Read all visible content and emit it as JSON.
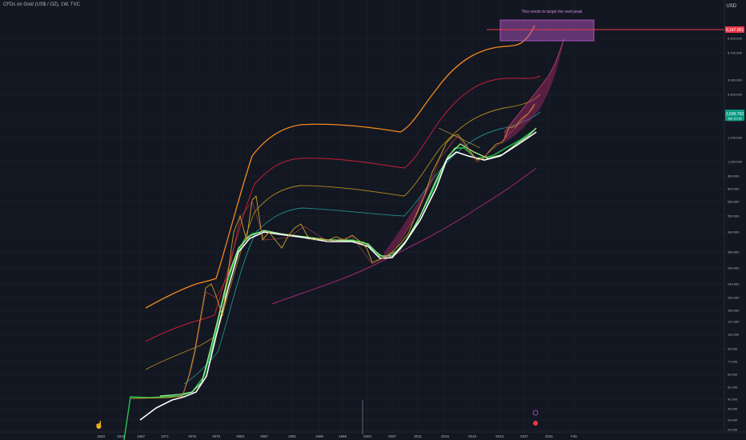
{
  "title": "CFDs on Gold (US$ / OZ), 1W, TVC",
  "currency": "USD",
  "annotation": "This needs to target the next peak.",
  "target_price_label": "9,147.001",
  "current_price_label": "2,699.750",
  "current_price_sub": "39d 11h 55",
  "chart_data": {
    "type": "line",
    "scale": "log",
    "x_ticks": [
      "1833",
      "1929",
      "1957",
      "1971",
      "1975",
      "1979",
      "1983",
      "1987",
      "1991",
      "1995",
      "1999",
      "2003",
      "2007",
      "2011",
      "2015",
      "2019",
      "2023",
      "2027",
      "2031",
      "Feb"
    ],
    "y_ticks": [
      "6,900.000",
      "5,700.000",
      "3,900.000",
      "3,100.000",
      "2,300.000",
      "1,700.000",
      "1,160.000",
      "960.000",
      "800.000",
      "650.000",
      "530.000",
      "430.000",
      "350.000",
      "290.000",
      "240.000",
      "200.000",
      "165.000",
      "137.000",
      "113.000",
      "93.000",
      "77.000",
      "63.000",
      "51.000",
      "42.000",
      "35.000",
      "29.000",
      "24.000"
    ],
    "price": [
      [
        1943,
        35
      ],
      [
        1968,
        35
      ],
      [
        1971,
        42
      ],
      [
        1974,
        160
      ],
      [
        1976,
        120
      ],
      [
        1980,
        650
      ],
      [
        1982,
        350
      ],
      [
        1985,
        320
      ],
      [
        1987,
        450
      ],
      [
        1990,
        390
      ],
      [
        1993,
        360
      ],
      [
        1996,
        390
      ],
      [
        1999,
        260
      ],
      [
        2001,
        270
      ],
      [
        2005,
        450
      ],
      [
        2008,
        900
      ],
      [
        2011,
        1800
      ],
      [
        2013,
        1250
      ],
      [
        2015,
        1100
      ],
      [
        2016,
        1300
      ],
      [
        2019,
        1400
      ],
      [
        2020,
        1900
      ],
      [
        2022,
        1700
      ],
      [
        2023,
        2000
      ],
      [
        2024,
        2699.75
      ]
    ]
  }
}
